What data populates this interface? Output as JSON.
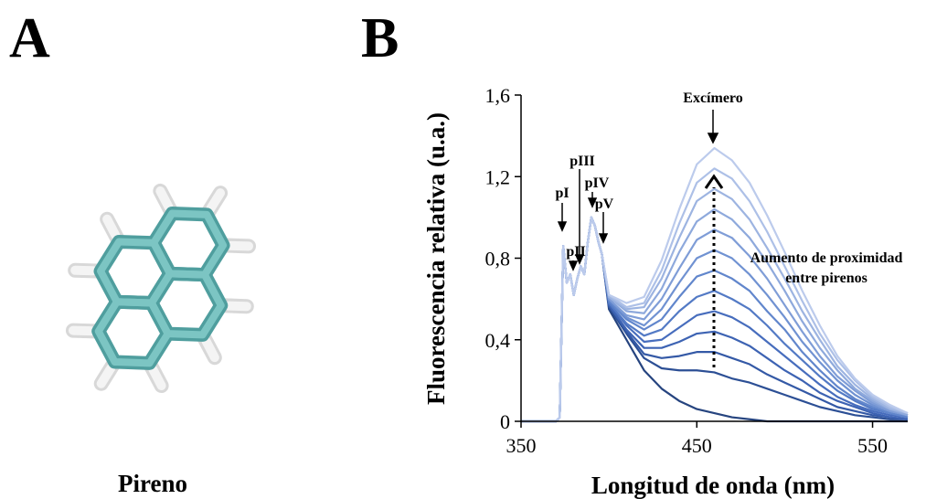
{
  "panel_a": {
    "label": "A",
    "caption": "Pireno"
  },
  "panel_b": {
    "label": "B"
  },
  "chart_data": {
    "type": "line",
    "x_label": "Longitud de onda (nm)",
    "y_label": "Fluorescencia relativa (u.a.)",
    "annotations": [
      "Excímero",
      "pI",
      "pII",
      "pIII",
      "pIV",
      "pV",
      "Aumento de proximidad",
      "entre pirenos"
    ],
    "xlim": [
      350,
      570
    ],
    "xticks": [
      350,
      450,
      550
    ],
    "ylim": [
      0,
      1.6
    ],
    "yticks": [
      0,
      {
        "value": 0.4,
        "label": "0,4"
      },
      {
        "value": 0.8,
        "label": "0,8"
      },
      {
        "value": 1.2,
        "label": "1,2"
      },
      {
        "value": 1.6,
        "label": "1,6"
      }
    ],
    "grid": false,
    "x": [
      350,
      370,
      372,
      374,
      376,
      378,
      380,
      382,
      384,
      386,
      388,
      390,
      392,
      394,
      396,
      400,
      410,
      420,
      430,
      440,
      450,
      460,
      470,
      480,
      490,
      500,
      510,
      520,
      530,
      540,
      550,
      560,
      570
    ],
    "series": [
      {
        "color": "#26447f",
        "values": [
          0,
          0,
          0.02,
          0.86,
          0.68,
          0.72,
          0.62,
          0.7,
          0.76,
          0.72,
          0.88,
          1.0,
          0.96,
          0.88,
          0.82,
          0.55,
          0.4,
          0.25,
          0.16,
          0.1,
          0.06,
          0.04,
          0.02,
          0.01,
          0,
          0,
          0,
          0,
          0,
          0,
          0,
          0,
          0
        ]
      },
      {
        "color": "#2c4f95",
        "values": [
          0,
          0,
          0.02,
          0.86,
          0.68,
          0.72,
          0.62,
          0.7,
          0.76,
          0.72,
          0.88,
          1.0,
          0.96,
          0.88,
          0.82,
          0.56,
          0.43,
          0.31,
          0.26,
          0.25,
          0.25,
          0.24,
          0.21,
          0.19,
          0.16,
          0.13,
          0.1,
          0.07,
          0.05,
          0.03,
          0.02,
          0.01,
          0.01
        ]
      },
      {
        "color": "#3459a6",
        "values": [
          0,
          0,
          0.02,
          0.86,
          0.68,
          0.72,
          0.62,
          0.7,
          0.76,
          0.72,
          0.88,
          1.0,
          0.96,
          0.88,
          0.82,
          0.57,
          0.44,
          0.33,
          0.31,
          0.32,
          0.34,
          0.34,
          0.31,
          0.28,
          0.23,
          0.19,
          0.15,
          0.11,
          0.07,
          0.05,
          0.03,
          0.02,
          0.01
        ]
      },
      {
        "color": "#3d63b3",
        "values": [
          0,
          0,
          0.02,
          0.86,
          0.68,
          0.72,
          0.62,
          0.7,
          0.76,
          0.72,
          0.88,
          1.0,
          0.96,
          0.88,
          0.82,
          0.57,
          0.45,
          0.36,
          0.36,
          0.39,
          0.43,
          0.44,
          0.41,
          0.37,
          0.31,
          0.25,
          0.2,
          0.14,
          0.1,
          0.07,
          0.04,
          0.02,
          0.01
        ]
      },
      {
        "color": "#476dbd",
        "values": [
          0,
          0,
          0.02,
          0.86,
          0.68,
          0.72,
          0.62,
          0.7,
          0.76,
          0.72,
          0.88,
          1.0,
          0.96,
          0.88,
          0.82,
          0.58,
          0.47,
          0.39,
          0.4,
          0.46,
          0.52,
          0.54,
          0.51,
          0.46,
          0.39,
          0.32,
          0.25,
          0.18,
          0.12,
          0.08,
          0.05,
          0.03,
          0.02
        ]
      },
      {
        "color": "#537ac5",
        "values": [
          0,
          0,
          0.02,
          0.86,
          0.68,
          0.72,
          0.62,
          0.7,
          0.76,
          0.72,
          0.88,
          1.0,
          0.96,
          0.88,
          0.82,
          0.58,
          0.48,
          0.42,
          0.45,
          0.54,
          0.61,
          0.64,
          0.6,
          0.55,
          0.47,
          0.38,
          0.3,
          0.22,
          0.15,
          0.1,
          0.06,
          0.04,
          0.02
        ]
      },
      {
        "color": "#6186cc",
        "values": [
          0,
          0,
          0.02,
          0.86,
          0.68,
          0.72,
          0.62,
          0.7,
          0.76,
          0.72,
          0.88,
          1.0,
          0.96,
          0.88,
          0.82,
          0.59,
          0.5,
          0.45,
          0.5,
          0.61,
          0.71,
          0.74,
          0.7,
          0.64,
          0.54,
          0.45,
          0.34,
          0.25,
          0.17,
          0.11,
          0.07,
          0.04,
          0.02
        ]
      },
      {
        "color": "#7092d2",
        "values": [
          0,
          0,
          0.02,
          0.86,
          0.68,
          0.72,
          0.62,
          0.7,
          0.76,
          0.72,
          0.88,
          1.0,
          0.96,
          0.88,
          0.82,
          0.6,
          0.51,
          0.47,
          0.55,
          0.68,
          0.8,
          0.84,
          0.8,
          0.72,
          0.62,
          0.51,
          0.39,
          0.29,
          0.2,
          0.13,
          0.08,
          0.05,
          0.03
        ]
      },
      {
        "color": "#7f9dd7",
        "values": [
          0,
          0,
          0.02,
          0.86,
          0.68,
          0.72,
          0.62,
          0.7,
          0.76,
          0.72,
          0.88,
          1.0,
          0.96,
          0.88,
          0.82,
          0.6,
          0.52,
          0.5,
          0.6,
          0.75,
          0.89,
          0.94,
          0.9,
          0.81,
          0.7,
          0.57,
          0.44,
          0.32,
          0.22,
          0.15,
          0.09,
          0.05,
          0.03
        ]
      },
      {
        "color": "#8ea9dc",
        "values": [
          0,
          0,
          0.02,
          0.86,
          0.68,
          0.72,
          0.62,
          0.7,
          0.76,
          0.72,
          0.88,
          1.0,
          0.96,
          0.88,
          0.82,
          0.61,
          0.54,
          0.53,
          0.65,
          0.83,
          0.98,
          1.04,
          0.99,
          0.9,
          0.78,
          0.64,
          0.49,
          0.36,
          0.25,
          0.16,
          0.1,
          0.06,
          0.03
        ]
      },
      {
        "color": "#9db4e1",
        "values": [
          0,
          0,
          0.02,
          0.86,
          0.68,
          0.72,
          0.62,
          0.7,
          0.76,
          0.72,
          0.88,
          1.0,
          0.96,
          0.88,
          0.82,
          0.61,
          0.55,
          0.56,
          0.7,
          0.9,
          1.08,
          1.14,
          1.09,
          0.99,
          0.85,
          0.7,
          0.54,
          0.4,
          0.27,
          0.18,
          0.11,
          0.06,
          0.04
        ]
      },
      {
        "color": "#adc0e7",
        "values": [
          0,
          0,
          0.02,
          0.86,
          0.68,
          0.72,
          0.62,
          0.7,
          0.76,
          0.72,
          0.88,
          1.0,
          0.96,
          0.88,
          0.82,
          0.62,
          0.56,
          0.58,
          0.74,
          0.97,
          1.17,
          1.24,
          1.19,
          1.08,
          0.93,
          0.76,
          0.59,
          0.43,
          0.3,
          0.2,
          0.12,
          0.07,
          0.04
        ]
      },
      {
        "color": "#bccbec",
        "values": [
          0,
          0,
          0.02,
          0.86,
          0.68,
          0.72,
          0.62,
          0.7,
          0.76,
          0.72,
          0.88,
          1.0,
          0.96,
          0.88,
          0.82,
          0.62,
          0.58,
          0.61,
          0.79,
          1.04,
          1.26,
          1.34,
          1.28,
          1.17,
          1.01,
          0.83,
          0.64,
          0.47,
          0.32,
          0.21,
          0.13,
          0.08,
          0.04
        ]
      }
    ]
  }
}
